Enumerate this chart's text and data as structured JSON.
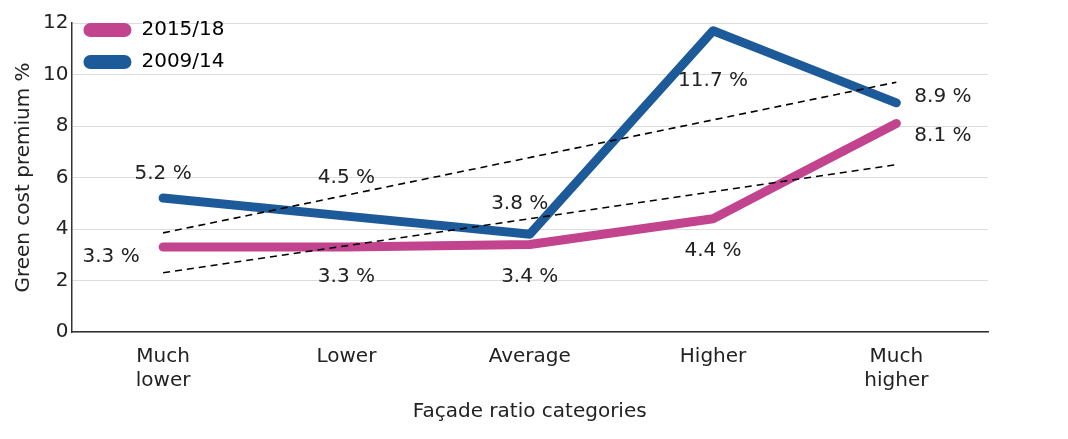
{
  "chart_data": {
    "type": "line",
    "xlabel": "Façade ratio categories",
    "ylabel": "Green cost premium %",
    "categories": [
      "Much lower",
      "Lower",
      "Average",
      "Higher",
      "Much higher"
    ],
    "series": [
      {
        "name": "2015/18",
        "color": "#c2448e",
        "values": [
          3.3,
          3.3,
          3.4,
          4.4,
          8.1
        ],
        "value_labels": [
          "3.3 %",
          "3.3 %",
          "3.4 %",
          "4.4 %",
          "8.1 %"
        ]
      },
      {
        "name": "2009/14",
        "color": "#1d5a99",
        "values": [
          5.2,
          4.5,
          3.8,
          11.7,
          8.9
        ],
        "value_labels": [
          "5.2 %",
          "4.5 %",
          "3.8 %",
          "11.7 %",
          "8.9 %"
        ]
      },
      {
        "color": "#000000",
        "values": [
          3.85,
          null,
          null,
          null,
          9.7
        ],
        "line_style": "dashed",
        "marker": "none"
      },
      {
        "color": "#000000",
        "values": [
          2.3,
          null,
          null,
          null,
          6.5
        ],
        "line_style": "dashed",
        "marker": "none"
      }
    ],
    "ylim": [
      0,
      12
    ],
    "yticks": [
      0,
      2,
      4,
      6,
      8,
      10,
      12
    ],
    "grid": "y",
    "legend": "top left",
    "marker": "none",
    "line_style": "solid"
  }
}
